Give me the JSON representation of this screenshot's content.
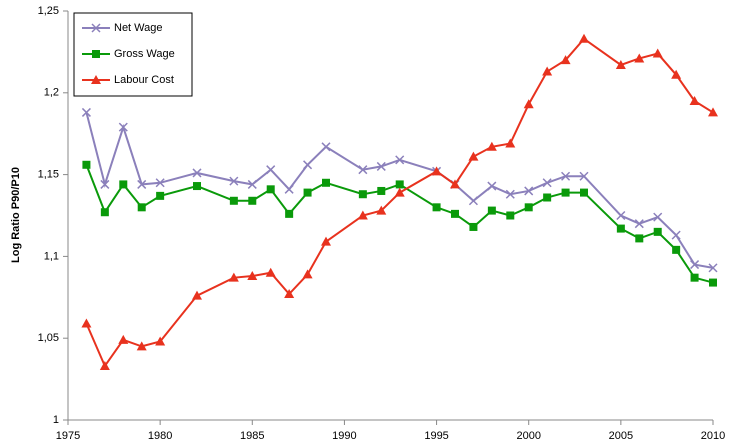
{
  "chart_data": {
    "type": "line",
    "y_label": "Log Ratio P90/P10",
    "x": [
      1976,
      1977,
      1978,
      1979,
      1980,
      1982,
      1984,
      1985,
      1986,
      1987,
      1988,
      1989,
      1991,
      1992,
      1993,
      1995,
      1996,
      1997,
      1998,
      1999,
      2000,
      2001,
      2002,
      2003,
      2005,
      2006,
      2007,
      2008,
      2009,
      2010
    ],
    "series": [
      {
        "name": "Net Wage",
        "color": "#8b80bb",
        "marker": "x",
        "values": [
          1.188,
          1.144,
          1.179,
          1.144,
          1.145,
          1.151,
          1.146,
          1.144,
          1.153,
          1.141,
          1.156,
          1.167,
          1.153,
          1.155,
          1.159,
          1.152,
          1.144,
          1.134,
          1.143,
          1.138,
          1.14,
          1.145,
          1.149,
          1.149,
          1.125,
          1.12,
          1.124,
          1.113,
          1.095,
          1.093
        ]
      },
      {
        "name": "Gross Wage",
        "color": "#0a9a0a",
        "marker": "square",
        "values": [
          1.156,
          1.127,
          1.144,
          1.13,
          1.137,
          1.143,
          1.134,
          1.134,
          1.141,
          1.126,
          1.139,
          1.145,
          1.138,
          1.14,
          1.144,
          1.13,
          1.126,
          1.118,
          1.128,
          1.125,
          1.13,
          1.136,
          1.139,
          1.139,
          1.117,
          1.111,
          1.115,
          1.104,
          1.087,
          1.084
        ]
      },
      {
        "name": "Labour Cost",
        "color": "#e8321e",
        "marker": "triangle",
        "values": [
          1.059,
          1.033,
          1.049,
          1.045,
          1.048,
          1.076,
          1.087,
          1.088,
          1.09,
          1.077,
          1.089,
          1.109,
          1.125,
          1.128,
          1.139,
          1.152,
          1.144,
          1.161,
          1.167,
          1.169,
          1.193,
          1.213,
          1.22,
          1.233,
          1.217,
          1.221,
          1.224,
          1.211,
          1.195,
          1.188
        ]
      }
    ],
    "xlim": [
      1975,
      2010
    ],
    "xticks": [
      1975,
      1980,
      1985,
      1990,
      1995,
      2000,
      2005,
      2010
    ],
    "ylim": [
      1,
      1.25
    ],
    "yticks": [
      1,
      {
        "value": 1.05,
        "label": "1,05"
      },
      {
        "value": 1.1,
        "label": "1,1"
      },
      {
        "value": 1.15,
        "label": "1,15"
      },
      {
        "value": 1.2,
        "label": "1,2"
      },
      {
        "value": 1.25,
        "label": "1,25"
      }
    ],
    "legend": "top-left",
    "grid": false
  }
}
